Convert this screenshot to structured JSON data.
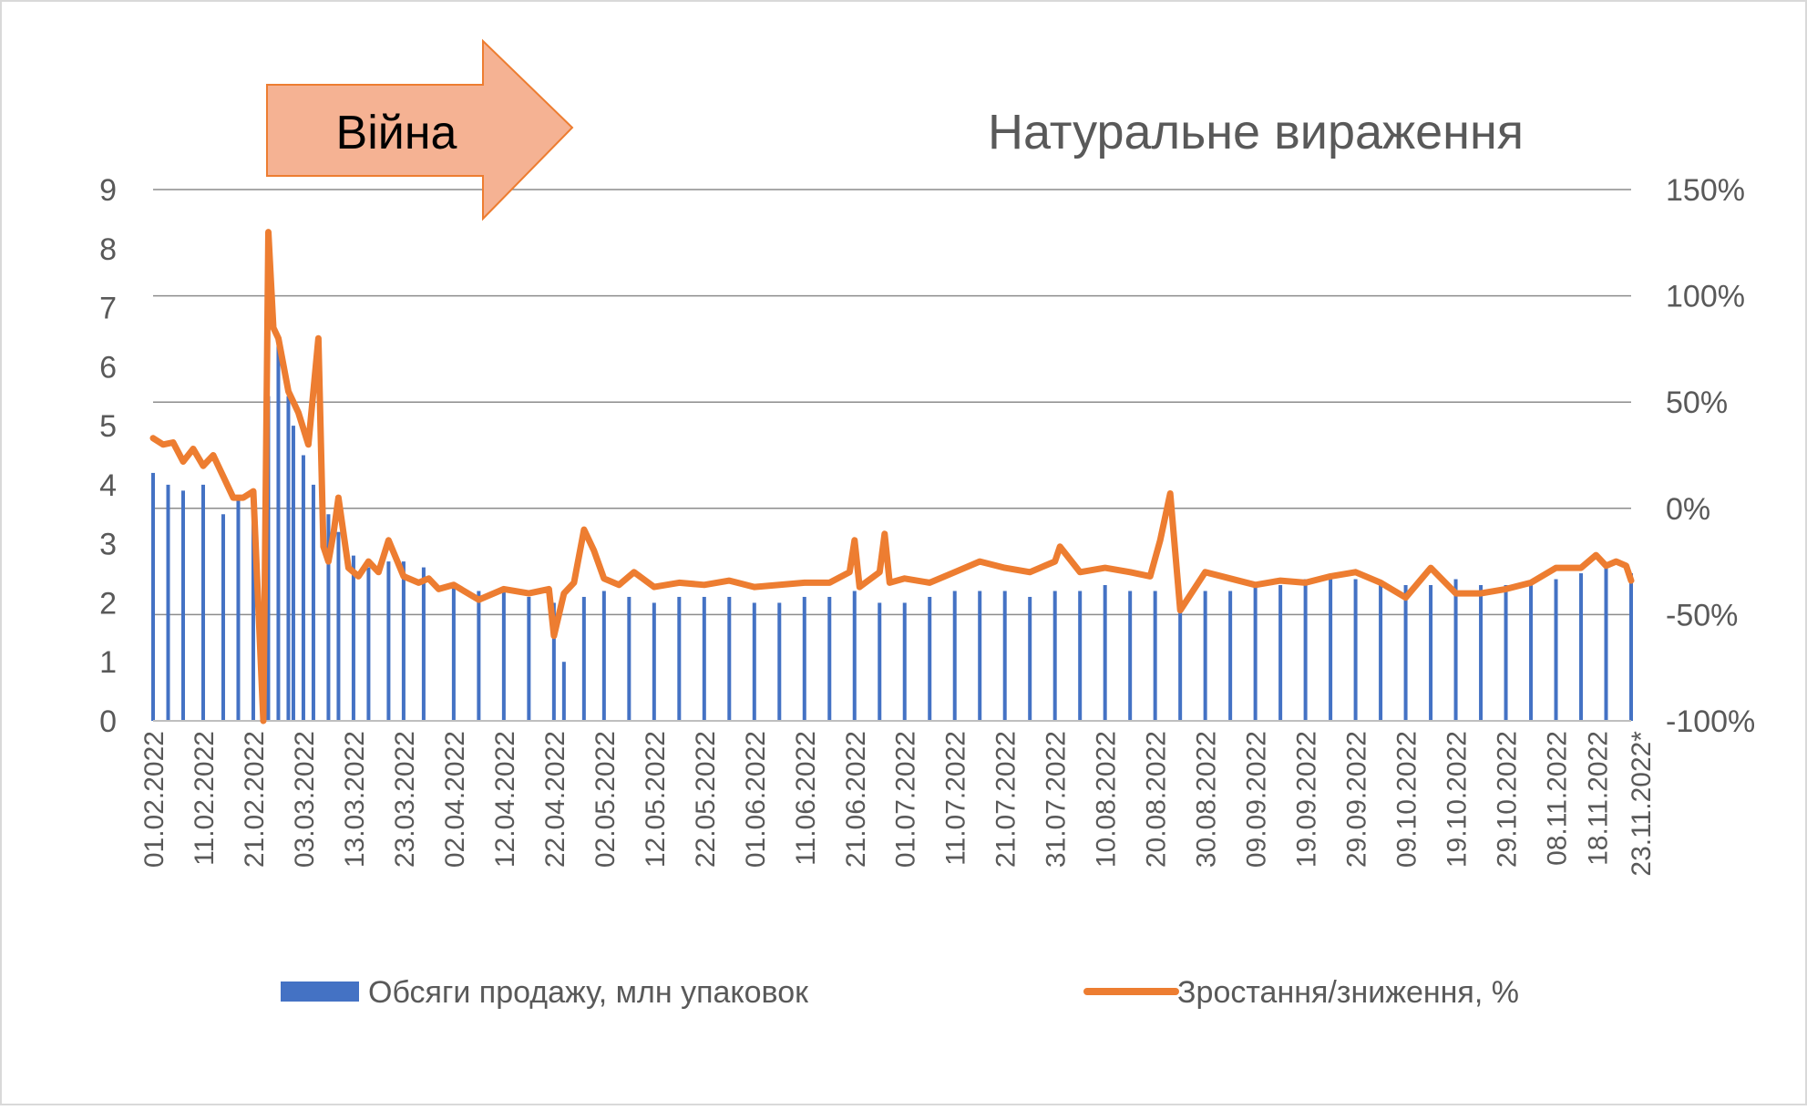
{
  "chart_data": {
    "type": "bar",
    "title": "Натуральне вираження",
    "annotation": "Війна",
    "xlabel": "",
    "ylabel": "",
    "ylim": [
      0,
      9
    ],
    "y2lim": [
      -1.0,
      1.5
    ],
    "yticks": [
      "0",
      "1",
      "2",
      "3",
      "4",
      "5",
      "6",
      "7",
      "8",
      "9"
    ],
    "y2ticks": [
      "-100%",
      "-50%",
      "0%",
      "50%",
      "100%",
      "150%"
    ],
    "xtick_labels": [
      "01.02.2022",
      "11.02.2022",
      "21.02.2022",
      "03.03.2022",
      "13.03.2022",
      "23.03.2022",
      "02.04.2022",
      "12.04.2022",
      "22.04.2022",
      "02.05.2022",
      "12.05.2022",
      "22.05.2022",
      "01.06.2022",
      "11.06.2022",
      "21.06.2022",
      "01.07.2022",
      "11.07.2022",
      "21.07.2022",
      "31.07.2022",
      "10.08.2022",
      "20.08.2022",
      "30.08.2022",
      "09.09.2022",
      "19.09.2022",
      "29.09.2022",
      "09.10.2022",
      "19.10.2022",
      "29.10.2022",
      "08.11.2022",
      "18.11.2022",
      "23.11.2022*"
    ],
    "grid": true,
    "legend_position": "bottom",
    "series": [
      {
        "name": "Обсяги продажу, млн упаковок",
        "axis": "left",
        "kind": "bar",
        "color": "#4472C4",
        "x": [
          "01.02.2022",
          "04.02.2022",
          "07.02.2022",
          "11.02.2022",
          "15.02.2022",
          "18.02.2022",
          "21.02.2022",
          "24.02.2022",
          "26.02.2022",
          "28.02.2022",
          "01.03.2022",
          "03.03.2022",
          "05.03.2022",
          "08.03.2022",
          "10.03.2022",
          "13.03.2022",
          "16.03.2022",
          "20.03.2022",
          "23.03.2022",
          "27.03.2022",
          "02.04.2022",
          "07.04.2022",
          "12.04.2022",
          "17.04.2022",
          "22.04.2022",
          "24.04.2022",
          "28.04.2022",
          "02.05.2022",
          "07.05.2022",
          "12.05.2022",
          "17.05.2022",
          "22.05.2022",
          "27.05.2022",
          "01.06.2022",
          "06.06.2022",
          "11.06.2022",
          "16.06.2022",
          "21.06.2022",
          "26.06.2022",
          "01.07.2022",
          "06.07.2022",
          "11.07.2022",
          "16.07.2022",
          "21.07.2022",
          "26.07.2022",
          "31.07.2022",
          "05.08.2022",
          "10.08.2022",
          "15.08.2022",
          "20.08.2022",
          "25.08.2022",
          "30.08.2022",
          "04.09.2022",
          "09.09.2022",
          "14.09.2022",
          "19.09.2022",
          "24.09.2022",
          "29.09.2022",
          "04.10.2022",
          "09.10.2022",
          "14.10.2022",
          "19.10.2022",
          "24.10.2022",
          "29.10.2022",
          "03.11.2022",
          "08.11.2022",
          "13.11.2022",
          "18.11.2022",
          "23.11.2022*"
        ],
        "values": [
          4.2,
          4.0,
          3.9,
          4.0,
          3.5,
          3.8,
          3.9,
          5.5,
          6.5,
          5.5,
          5.0,
          4.5,
          4.0,
          3.5,
          3.2,
          2.8,
          2.6,
          2.7,
          2.7,
          2.6,
          2.3,
          2.2,
          2.2,
          2.1,
          2.0,
          1.0,
          2.1,
          2.2,
          2.1,
          2.0,
          2.1,
          2.1,
          2.1,
          2.0,
          2.0,
          2.1,
          2.1,
          2.2,
          2.0,
          2.0,
          2.1,
          2.2,
          2.2,
          2.2,
          2.1,
          2.2,
          2.2,
          2.3,
          2.2,
          2.2,
          2.1,
          2.2,
          2.2,
          2.3,
          2.3,
          2.4,
          2.4,
          2.4,
          2.3,
          2.3,
          2.3,
          2.4,
          2.3,
          2.3,
          2.3,
          2.4,
          2.5,
          2.6,
          2.5
        ]
      },
      {
        "name": "Зростання/зниження, %",
        "axis": "right",
        "kind": "line",
        "color": "#ED7D31",
        "x": [
          "01.02.2022",
          "03.02.2022",
          "05.02.2022",
          "07.02.2022",
          "09.02.2022",
          "11.02.2022",
          "13.02.2022",
          "15.02.2022",
          "17.02.2022",
          "19.02.2022",
          "21.02.2022",
          "23.02.2022",
          "24.02.2022",
          "25.02.2022",
          "26.02.2022",
          "28.02.2022",
          "02.03.2022",
          "04.03.2022",
          "06.03.2022",
          "07.03.2022",
          "08.03.2022",
          "09.03.2022",
          "10.03.2022",
          "12.03.2022",
          "14.03.2022",
          "16.03.2022",
          "18.03.2022",
          "20.03.2022",
          "23.03.2022",
          "26.03.2022",
          "28.03.2022",
          "30.03.2022",
          "02.04.2022",
          "07.04.2022",
          "12.04.2022",
          "17.04.2022",
          "21.04.2022",
          "22.04.2022",
          "24.04.2022",
          "26.04.2022",
          "28.04.2022",
          "30.04.2022",
          "02.05.2022",
          "05.05.2022",
          "08.05.2022",
          "12.05.2022",
          "17.05.2022",
          "22.05.2022",
          "27.05.2022",
          "01.06.2022",
          "06.06.2022",
          "11.06.2022",
          "16.06.2022",
          "20.06.2022",
          "21.06.2022",
          "22.06.2022",
          "26.06.2022",
          "27.06.2022",
          "28.06.2022",
          "01.07.2022",
          "06.07.2022",
          "11.07.2022",
          "16.07.2022",
          "21.07.2022",
          "26.07.2022",
          "31.07.2022",
          "01.08.2022",
          "05.08.2022",
          "10.08.2022",
          "15.08.2022",
          "19.08.2022",
          "21.08.2022",
          "23.08.2022",
          "25.08.2022",
          "30.08.2022",
          "04.09.2022",
          "09.09.2022",
          "14.09.2022",
          "19.09.2022",
          "24.09.2022",
          "29.09.2022",
          "04.10.2022",
          "09.10.2022",
          "14.10.2022",
          "19.10.2022",
          "24.10.2022",
          "29.10.2022",
          "03.11.2022",
          "08.11.2022",
          "13.11.2022",
          "16.11.2022",
          "18.11.2022",
          "20.11.2022",
          "22.11.2022",
          "23.11.2022*"
        ],
        "values": [
          0.33,
          0.3,
          0.31,
          0.22,
          0.28,
          0.2,
          0.25,
          0.15,
          0.05,
          0.05,
          0.08,
          -1.0,
          1.3,
          0.85,
          0.8,
          0.55,
          0.45,
          0.3,
          0.8,
          -0.18,
          -0.25,
          -0.12,
          0.05,
          -0.28,
          -0.32,
          -0.25,
          -0.3,
          -0.15,
          -0.32,
          -0.35,
          -0.33,
          -0.38,
          -0.36,
          -0.43,
          -0.38,
          -0.4,
          -0.38,
          -0.6,
          -0.4,
          -0.35,
          -0.1,
          -0.2,
          -0.33,
          -0.36,
          -0.3,
          -0.37,
          -0.35,
          -0.36,
          -0.34,
          -0.37,
          -0.36,
          -0.35,
          -0.35,
          -0.3,
          -0.15,
          -0.37,
          -0.3,
          -0.12,
          -0.35,
          -0.33,
          -0.35,
          -0.3,
          -0.25,
          -0.28,
          -0.3,
          -0.25,
          -0.18,
          -0.3,
          -0.28,
          -0.3,
          -0.32,
          -0.15,
          0.07,
          -0.48,
          -0.3,
          -0.33,
          -0.36,
          -0.34,
          -0.35,
          -0.32,
          -0.3,
          -0.35,
          -0.42,
          -0.28,
          -0.4,
          -0.4,
          -0.38,
          -0.35,
          -0.28,
          -0.28,
          -0.22,
          -0.27,
          -0.25,
          -0.27,
          -0.34
        ]
      }
    ]
  }
}
